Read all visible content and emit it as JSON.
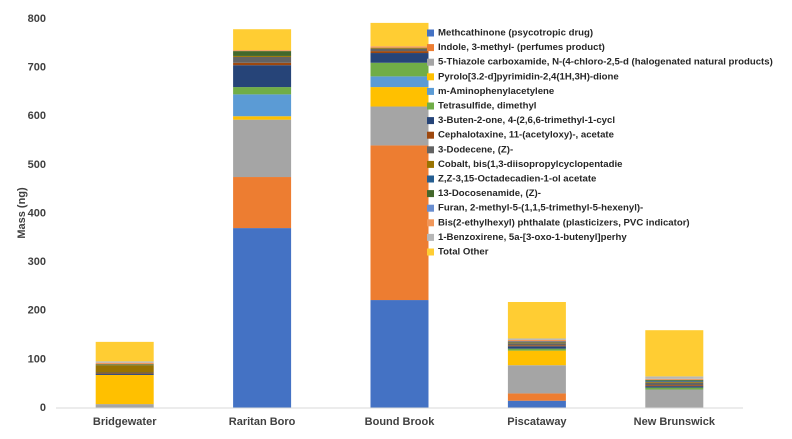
{
  "chart_data": {
    "type": "stacked_bar",
    "y_label": "Mass (ng)",
    "categories": [
      "Bridgewater",
      "Raritan Boro",
      "Bound Brook",
      "Piscataway",
      "New Brunswick"
    ],
    "ylim": [
      0,
      800
    ],
    "yticks": [
      0,
      100,
      200,
      300,
      400,
      500,
      600,
      700,
      800
    ],
    "series": [
      {
        "name": "Methcathinone (psycotropic drug)",
        "color": "#4472c4",
        "values": [
          0,
          370,
          222,
          15,
          0
        ]
      },
      {
        "name": "Indole, 3-methyl- (perfumes product)",
        "color": "#ed7d31",
        "values": [
          0,
          105,
          318,
          15,
          0
        ]
      },
      {
        "name": "5-Thiazole carboxamide, N-(4-chloro-2,5-d (halogenated natural products)",
        "color": "#a5a5a5",
        "values": [
          8,
          118,
          80,
          58,
          38
        ]
      },
      {
        "name": "Pyrolo[3.2-d]pyrimidin-2,4(1H,3H)-dione",
        "color": "#ffc000",
        "values": [
          60,
          7,
          40,
          30,
          0
        ]
      },
      {
        "name": "m-Aminophenylacetylene",
        "color": "#5b9bd5",
        "values": [
          0,
          45,
          22,
          0,
          0
        ]
      },
      {
        "name": "Tetrasulfide, dimethyl",
        "color": "#70ad47",
        "values": [
          0,
          15,
          28,
          4,
          4
        ]
      },
      {
        "name": "3-Buten-2-one, 4-(2,6,6-trimethyl-1-cycl",
        "color": "#264478",
        "values": [
          2,
          45,
          20,
          5,
          3
        ]
      },
      {
        "name": "Cephalotaxine, 11-(acetyloxy)-, acetate",
        "color": "#9e480e",
        "values": [
          1,
          5,
          4,
          2,
          2
        ]
      },
      {
        "name": "3-Dodecene, (Z)-",
        "color": "#636363",
        "values": [
          2,
          12,
          5,
          4,
          5
        ]
      },
      {
        "name": "Cobalt, bis(1,3-diisopropylcyclopentadie",
        "color": "#997300",
        "values": [
          15,
          2,
          2,
          2,
          2
        ]
      },
      {
        "name": "Z,Z-3,15-Octadecadien-1-ol acetate",
        "color": "#255e91",
        "values": [
          0,
          0,
          0,
          2,
          2
        ]
      },
      {
        "name": "13-Docosenamide, (Z)-",
        "color": "#43682b",
        "values": [
          2,
          10,
          0,
          0,
          2
        ]
      },
      {
        "name": "Furan, 2-methyl-5-(1,1,5-trimethyl-5-hexenyl)-",
        "color": "#698ed0",
        "values": [
          0,
          0,
          0,
          0,
          0
        ]
      },
      {
        "name": "Bis(2-ethylhexyl) phthalate (plasticizers, PVC indicator)",
        "color": "#f1975a",
        "values": [
          3,
          2,
          3,
          3,
          2
        ]
      },
      {
        "name": "1-Benzoxirene, 5a-[3-oxo-1-butenyl]perhy",
        "color": "#b7b7b7",
        "values": [
          3,
          0,
          0,
          3,
          5
        ]
      },
      {
        "name": "Total Other",
        "color": "#ffcd33",
        "values": [
          40,
          43,
          48,
          75,
          95
        ]
      }
    ]
  }
}
